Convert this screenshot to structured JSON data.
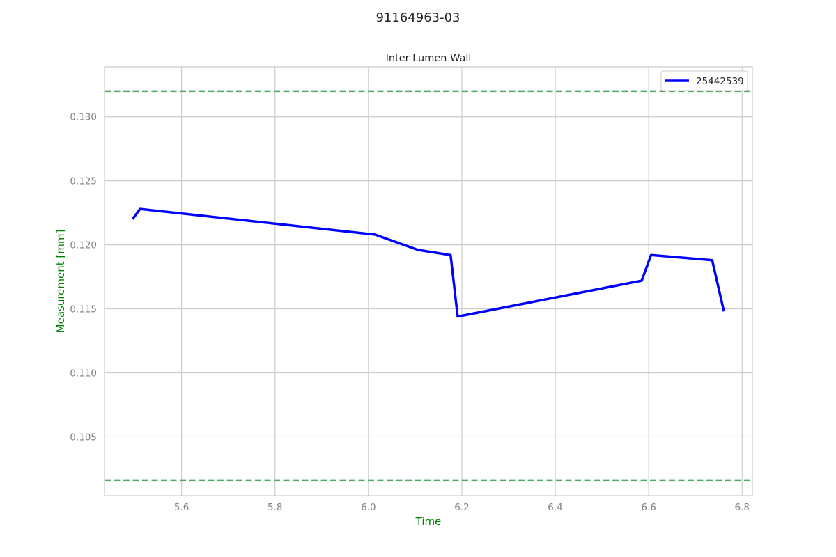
{
  "figure_title": "91164963-03",
  "colors": {
    "series": "#0000ff",
    "limits": "#55a868",
    "axis_label": "#008000",
    "grid": "#cccccc",
    "tick_label": "#808080"
  },
  "chart_data": {
    "type": "line",
    "title": "Inter Lumen Wall",
    "xlabel": "Time",
    "ylabel": "Measurement [mm]",
    "xlim": [
      5.435,
      6.822
    ],
    "ylim": [
      0.1004,
      0.1339
    ],
    "xticks": [
      5.6,
      5.8,
      6.0,
      6.2,
      6.4,
      6.6,
      6.8
    ],
    "xtick_labels": [
      "5.6",
      "5.8",
      "6.0",
      "6.2",
      "6.4",
      "6.6",
      "6.8"
    ],
    "yticks": [
      0.105,
      0.11,
      0.115,
      0.12,
      0.125,
      0.13
    ],
    "ytick_labels": [
      "0.105",
      "0.110",
      "0.115",
      "0.120",
      "0.125",
      "0.130"
    ],
    "grid": true,
    "legend_position": "top-right",
    "series": [
      {
        "name": "25442539",
        "x": [
          5.495,
          5.511,
          6.014,
          6.106,
          6.176,
          6.191,
          6.585,
          6.605,
          6.736,
          6.761
        ],
        "y": [
          0.122,
          0.1228,
          0.1208,
          0.1196,
          0.1192,
          0.1144,
          0.1172,
          0.1192,
          0.1188,
          0.1148
        ]
      }
    ],
    "limit_lines": [
      0.132,
      0.1016
    ]
  }
}
